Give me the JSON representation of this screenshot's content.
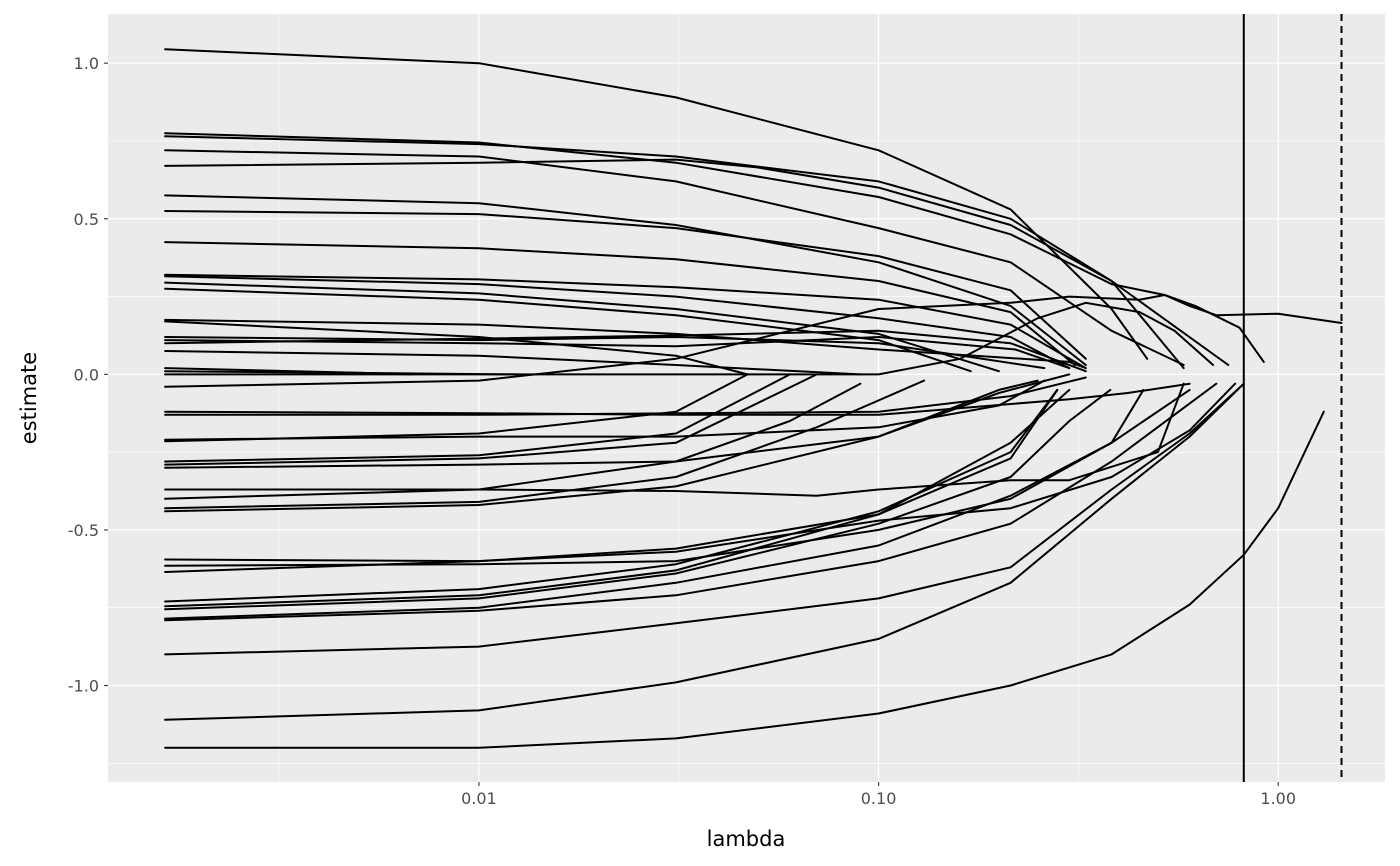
{
  "chart_data": {
    "type": "line",
    "title": "",
    "xlabel": "lambda",
    "ylabel": "estimate",
    "x_scale": "log10",
    "xlim": [
      0.00118,
      1.85
    ],
    "ylim": [
      -1.31,
      1.158
    ],
    "x_ticks": [
      {
        "value": 0.01,
        "label": "0.01"
      },
      {
        "value": 0.1,
        "label": "0.10"
      },
      {
        "value": 1.0,
        "label": "1.00"
      }
    ],
    "y_ticks": [
      {
        "value": 1.0,
        "label": "1.0"
      },
      {
        "value": 0.5,
        "label": "0.5"
      },
      {
        "value": 0.0,
        "label": "0.0"
      },
      {
        "value": -0.5,
        "label": "-0.5"
      },
      {
        "value": -1.0,
        "label": "-1.0"
      }
    ],
    "grid": true,
    "panel_background": "#EBEBEB",
    "line_color": "#000000",
    "vlines": [
      {
        "lambda": 0.82,
        "style": "solid"
      },
      {
        "lambda": 1.44,
        "style": "dashed"
      }
    ],
    "series": [
      {
        "points": [
          [
            0.00164,
            1.045
          ],
          [
            0.01,
            1.0
          ],
          [
            0.0311,
            0.89
          ],
          [
            0.1,
            0.72
          ],
          [
            0.214,
            0.53
          ],
          [
            0.383,
            0.21
          ],
          [
            0.47,
            0.05
          ]
        ]
      },
      {
        "points": [
          [
            0.00164,
            0.775
          ],
          [
            0.01,
            0.745
          ],
          [
            0.0311,
            0.68
          ],
          [
            0.1,
            0.57
          ],
          [
            0.214,
            0.45
          ],
          [
            0.383,
            0.29
          ],
          [
            0.52,
            0.255
          ],
          [
            0.62,
            0.22
          ],
          [
            0.8,
            0.15
          ],
          [
            0.92,
            0.04
          ]
        ]
      },
      {
        "points": [
          [
            0.00164,
            0.765
          ],
          [
            0.01,
            0.74
          ],
          [
            0.0311,
            0.7
          ],
          [
            0.1,
            0.62
          ],
          [
            0.214,
            0.5
          ],
          [
            0.383,
            0.3
          ],
          [
            0.75,
            0.03
          ]
        ]
      },
      {
        "points": [
          [
            0.00164,
            0.72
          ],
          [
            0.01,
            0.7
          ],
          [
            0.0311,
            0.62
          ],
          [
            0.1,
            0.47
          ],
          [
            0.214,
            0.36
          ],
          [
            0.383,
            0.14
          ],
          [
            0.58,
            0.03
          ]
        ]
      },
      {
        "points": [
          [
            0.00164,
            0.67
          ],
          [
            0.01,
            0.68
          ],
          [
            0.0311,
            0.69
          ],
          [
            0.0497,
            0.665
          ],
          [
            0.1,
            0.6
          ],
          [
            0.214,
            0.48
          ],
          [
            0.383,
            0.3
          ],
          [
            0.58,
            0.02
          ]
        ]
      },
      {
        "points": [
          [
            0.00164,
            0.575
          ],
          [
            0.01,
            0.55
          ],
          [
            0.0311,
            0.48
          ],
          [
            0.1,
            0.36
          ],
          [
            0.214,
            0.22
          ],
          [
            0.33,
            0.03
          ]
        ]
      },
      {
        "points": [
          [
            0.00164,
            0.525
          ],
          [
            0.01,
            0.515
          ],
          [
            0.0311,
            0.47
          ],
          [
            0.1,
            0.38
          ],
          [
            0.214,
            0.27
          ],
          [
            0.33,
            0.05
          ]
        ]
      },
      {
        "points": [
          [
            0.00164,
            0.425
          ],
          [
            0.01,
            0.405
          ],
          [
            0.0311,
            0.37
          ],
          [
            0.1,
            0.3
          ],
          [
            0.214,
            0.2
          ],
          [
            0.31,
            0.03
          ]
        ]
      },
      {
        "points": [
          [
            0.00164,
            0.32
          ],
          [
            0.01,
            0.305
          ],
          [
            0.0311,
            0.28
          ],
          [
            0.1,
            0.24
          ],
          [
            0.214,
            0.16
          ],
          [
            0.33,
            0.02
          ]
        ]
      },
      {
        "points": [
          [
            0.00164,
            0.315
          ],
          [
            0.01,
            0.29
          ],
          [
            0.0311,
            0.25
          ],
          [
            0.1,
            0.18
          ],
          [
            0.214,
            0.12
          ],
          [
            0.3,
            0.02
          ]
        ]
      },
      {
        "points": [
          [
            0.00164,
            0.295
          ],
          [
            0.01,
            0.26
          ],
          [
            0.0311,
            0.21
          ],
          [
            0.1,
            0.13
          ],
          [
            0.2,
            0.01
          ]
        ]
      },
      {
        "points": [
          [
            0.00164,
            0.275
          ],
          [
            0.01,
            0.24
          ],
          [
            0.0311,
            0.19
          ],
          [
            0.1,
            0.11
          ],
          [
            0.17,
            0.01
          ]
        ]
      },
      {
        "points": [
          [
            0.00164,
            0.175
          ],
          [
            0.01,
            0.16
          ],
          [
            0.0311,
            0.13
          ],
          [
            0.1,
            0.08
          ],
          [
            0.3,
            0.04
          ],
          [
            0.33,
            0.02
          ]
        ]
      },
      {
        "points": [
          [
            0.00164,
            0.17
          ],
          [
            0.01,
            0.12
          ],
          [
            0.0311,
            0.06
          ],
          [
            0.047,
            0.0
          ]
        ]
      },
      {
        "points": [
          [
            0.00164,
            0.12
          ],
          [
            0.01,
            0.11
          ],
          [
            0.0311,
            0.12
          ],
          [
            0.1,
            0.1
          ],
          [
            0.26,
            0.02
          ]
        ]
      },
      {
        "points": [
          [
            0.00164,
            0.11
          ],
          [
            0.01,
            0.1
          ],
          [
            0.0311,
            0.09
          ],
          [
            0.1,
            0.12
          ],
          [
            0.22,
            0.08
          ],
          [
            0.3,
            0.02
          ]
        ]
      },
      {
        "points": [
          [
            0.00164,
            0.1
          ],
          [
            0.01,
            0.115
          ],
          [
            0.0311,
            0.125
          ],
          [
            0.1,
            0.14
          ],
          [
            0.214,
            0.1
          ],
          [
            0.33,
            0.01
          ]
        ]
      },
      {
        "points": [
          [
            0.00164,
            0.075
          ],
          [
            0.01,
            0.06
          ],
          [
            0.0311,
            0.03
          ],
          [
            0.09,
            0.0
          ]
        ]
      },
      {
        "points": [
          [
            0.00164,
            0.02
          ],
          [
            0.005,
            0.005
          ],
          [
            0.0068,
            0.0
          ]
        ]
      },
      {
        "points": [
          [
            0.00164,
            0.01
          ],
          [
            0.0125,
            0.0
          ]
        ]
      },
      {
        "points": [
          [
            0.00164,
            -0.04
          ],
          [
            0.01,
            -0.02
          ],
          [
            0.0311,
            0.05
          ],
          [
            0.1,
            0.21
          ],
          [
            0.214,
            0.23
          ],
          [
            0.3,
            0.25
          ],
          [
            0.45,
            0.24
          ],
          [
            0.52,
            0.255
          ],
          [
            0.6,
            0.22
          ],
          [
            0.7,
            0.19
          ],
          [
            1.0,
            0.195
          ],
          [
            1.44,
            0.165
          ]
        ]
      },
      {
        "points": [
          [
            0.00164,
            0.0
          ],
          [
            0.1,
            0.0
          ],
          [
            0.16,
            0.05
          ],
          [
            0.25,
            0.18
          ],
          [
            0.33,
            0.23
          ],
          [
            0.45,
            0.2
          ],
          [
            0.55,
            0.14
          ],
          [
            0.687,
            0.03
          ]
        ]
      },
      {
        "points": [
          [
            0.00164,
            -0.13
          ],
          [
            0.01,
            -0.13
          ],
          [
            0.1,
            -0.12
          ],
          [
            0.214,
            -0.07
          ],
          [
            0.33,
            -0.01
          ]
        ]
      },
      {
        "points": [
          [
            0.00164,
            -0.12
          ],
          [
            0.01,
            -0.125
          ],
          [
            0.0311,
            -0.13
          ],
          [
            0.1,
            -0.13
          ],
          [
            0.3,
            -0.08
          ],
          [
            0.42,
            -0.06
          ],
          [
            0.6,
            -0.03
          ]
        ]
      },
      {
        "points": [
          [
            0.00164,
            -0.215
          ],
          [
            0.01,
            -0.19
          ],
          [
            0.0311,
            -0.12
          ],
          [
            0.047,
            0.0
          ]
        ]
      },
      {
        "points": [
          [
            0.00164,
            -0.21
          ],
          [
            0.01,
            -0.2
          ],
          [
            0.0311,
            -0.2
          ],
          [
            0.1,
            -0.17
          ],
          [
            0.2,
            -0.1
          ],
          [
            0.26,
            -0.02
          ]
        ]
      },
      {
        "points": [
          [
            0.00164,
            -0.28
          ],
          [
            0.01,
            -0.26
          ],
          [
            0.0311,
            -0.19
          ],
          [
            0.06,
            0.0
          ]
        ]
      },
      {
        "points": [
          [
            0.00164,
            -0.29
          ],
          [
            0.01,
            -0.27
          ],
          [
            0.0311,
            -0.22
          ],
          [
            0.07,
            0.0
          ]
        ]
      },
      {
        "points": [
          [
            0.00164,
            -0.3
          ],
          [
            0.01,
            -0.29
          ],
          [
            0.0311,
            -0.28
          ],
          [
            0.1,
            -0.2
          ],
          [
            0.2,
            -0.06
          ],
          [
            0.3,
            0.0
          ]
        ]
      },
      {
        "points": [
          [
            0.00164,
            -0.37
          ],
          [
            0.01,
            -0.37
          ],
          [
            0.0311,
            -0.375
          ],
          [
            0.07,
            -0.39
          ],
          [
            0.1,
            -0.37
          ],
          [
            0.214,
            -0.34
          ],
          [
            0.3,
            -0.34
          ],
          [
            0.5,
            -0.25
          ],
          [
            0.58,
            -0.03
          ]
        ]
      },
      {
        "points": [
          [
            0.00164,
            -0.4
          ],
          [
            0.01,
            -0.37
          ],
          [
            0.0311,
            -0.28
          ],
          [
            0.06,
            -0.15
          ],
          [
            0.09,
            -0.03
          ]
        ]
      },
      {
        "points": [
          [
            0.00164,
            -0.43
          ],
          [
            0.01,
            -0.41
          ],
          [
            0.0311,
            -0.33
          ],
          [
            0.07,
            -0.17
          ],
          [
            0.13,
            -0.02
          ]
        ]
      },
      {
        "points": [
          [
            0.00164,
            -0.44
          ],
          [
            0.01,
            -0.42
          ],
          [
            0.0311,
            -0.36
          ],
          [
            0.1,
            -0.2
          ],
          [
            0.2,
            -0.05
          ],
          [
            0.25,
            -0.02
          ]
        ]
      },
      {
        "points": [
          [
            0.00164,
            -0.595
          ],
          [
            0.01,
            -0.6
          ],
          [
            0.0311,
            -0.57
          ],
          [
            0.1,
            -0.47
          ],
          [
            0.214,
            -0.43
          ],
          [
            0.383,
            -0.33
          ],
          [
            0.6,
            -0.18
          ],
          [
            0.78,
            -0.03
          ]
        ]
      },
      {
        "points": [
          [
            0.00164,
            -0.615
          ],
          [
            0.01,
            -0.61
          ],
          [
            0.0311,
            -0.6
          ],
          [
            0.1,
            -0.5
          ],
          [
            0.214,
            -0.4
          ],
          [
            0.383,
            -0.22
          ],
          [
            0.46,
            -0.05
          ]
        ]
      },
      {
        "points": [
          [
            0.00164,
            -0.635
          ],
          [
            0.01,
            -0.6
          ],
          [
            0.0311,
            -0.56
          ],
          [
            0.1,
            -0.45
          ],
          [
            0.214,
            -0.27
          ],
          [
            0.28,
            -0.05
          ]
        ]
      },
      {
        "points": [
          [
            0.00164,
            -0.73
          ],
          [
            0.01,
            -0.69
          ],
          [
            0.0311,
            -0.61
          ],
          [
            0.1,
            -0.44
          ],
          [
            0.214,
            -0.25
          ],
          [
            0.28,
            -0.05
          ]
        ]
      },
      {
        "points": [
          [
            0.00164,
            -0.745
          ],
          [
            0.01,
            -0.71
          ],
          [
            0.0311,
            -0.63
          ],
          [
            0.1,
            -0.45
          ],
          [
            0.214,
            -0.22
          ],
          [
            0.3,
            -0.05
          ]
        ]
      },
      {
        "points": [
          [
            0.00164,
            -0.755
          ],
          [
            0.01,
            -0.72
          ],
          [
            0.0311,
            -0.64
          ],
          [
            0.1,
            -0.48
          ],
          [
            0.214,
            -0.33
          ],
          [
            0.3,
            -0.15
          ],
          [
            0.38,
            -0.05
          ]
        ]
      },
      {
        "points": [
          [
            0.00164,
            -0.785
          ],
          [
            0.01,
            -0.75
          ],
          [
            0.0311,
            -0.67
          ],
          [
            0.1,
            -0.55
          ],
          [
            0.214,
            -0.39
          ],
          [
            0.383,
            -0.22
          ],
          [
            0.6,
            -0.05
          ]
        ]
      },
      {
        "points": [
          [
            0.00164,
            -0.79
          ],
          [
            0.01,
            -0.76
          ],
          [
            0.0311,
            -0.71
          ],
          [
            0.1,
            -0.6
          ],
          [
            0.214,
            -0.48
          ],
          [
            0.383,
            -0.28
          ],
          [
            0.7,
            -0.03
          ]
        ]
      },
      {
        "points": [
          [
            0.00164,
            -0.9
          ],
          [
            0.01,
            -0.875
          ],
          [
            0.0311,
            -0.8
          ],
          [
            0.1,
            -0.72
          ],
          [
            0.214,
            -0.62
          ],
          [
            0.383,
            -0.37
          ],
          [
            0.6,
            -0.19
          ],
          [
            0.82,
            -0.03
          ]
        ]
      },
      {
        "points": [
          [
            0.00164,
            -1.11
          ],
          [
            0.01,
            -1.08
          ],
          [
            0.0311,
            -0.99
          ],
          [
            0.1,
            -0.85
          ],
          [
            0.214,
            -0.67
          ],
          [
            0.383,
            -0.4
          ],
          [
            0.6,
            -0.2
          ],
          [
            0.82,
            -0.03
          ]
        ]
      },
      {
        "points": [
          [
            0.00164,
            -1.2
          ],
          [
            0.01,
            -1.2
          ],
          [
            0.0311,
            -1.17
          ],
          [
            0.1,
            -1.09
          ],
          [
            0.214,
            -1.0
          ],
          [
            0.383,
            -0.9
          ],
          [
            0.6,
            -0.74
          ],
          [
            0.82,
            -0.58
          ],
          [
            1.0,
            -0.43
          ],
          [
            1.3,
            -0.12
          ]
        ]
      }
    ]
  }
}
